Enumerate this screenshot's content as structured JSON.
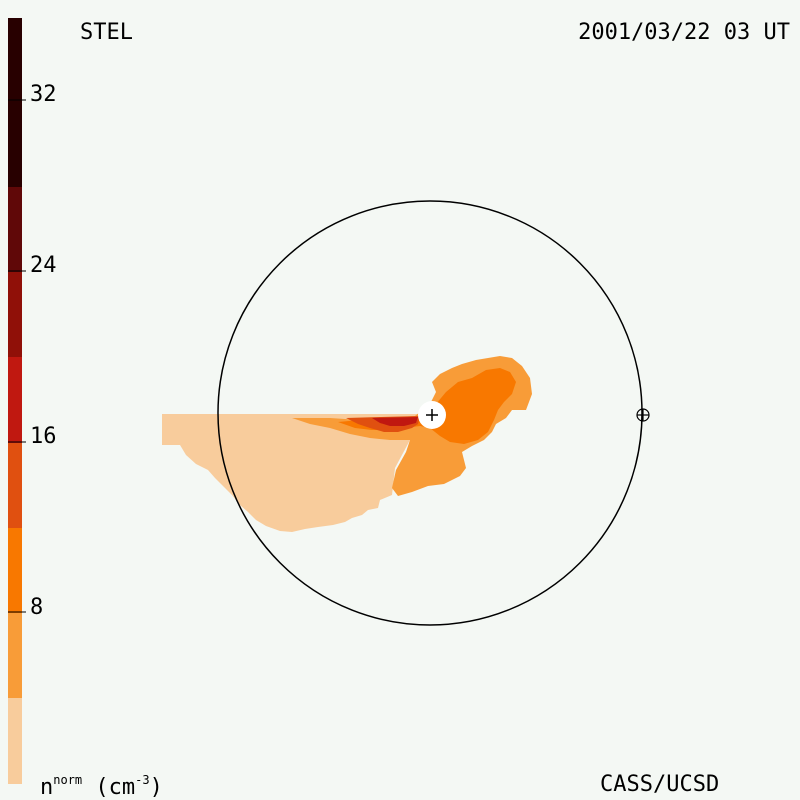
{
  "header": {
    "station": "STEL",
    "timestamp": "2001/03/22 03 UT"
  },
  "footer": {
    "credit": "CASS/UCSD",
    "unit_base": "n",
    "unit_sup": "norm",
    "unit_paren": "(cm",
    "unit_exp": "-3",
    "unit_close": ")"
  },
  "colorbar": {
    "tick_labels": [
      "32",
      "24",
      "16",
      "8"
    ],
    "tick_values": [
      32,
      24,
      16,
      8
    ],
    "range": [
      0,
      36
    ],
    "colors": [
      "#f8cc9c",
      "#f89c38",
      "#f87800",
      "#e05010",
      "#c01810",
      "#901008",
      "#600808",
      "#280000"
    ]
  },
  "map": {
    "sun_marker": "+",
    "earth_marker": "earth-symbol-icon"
  }
}
